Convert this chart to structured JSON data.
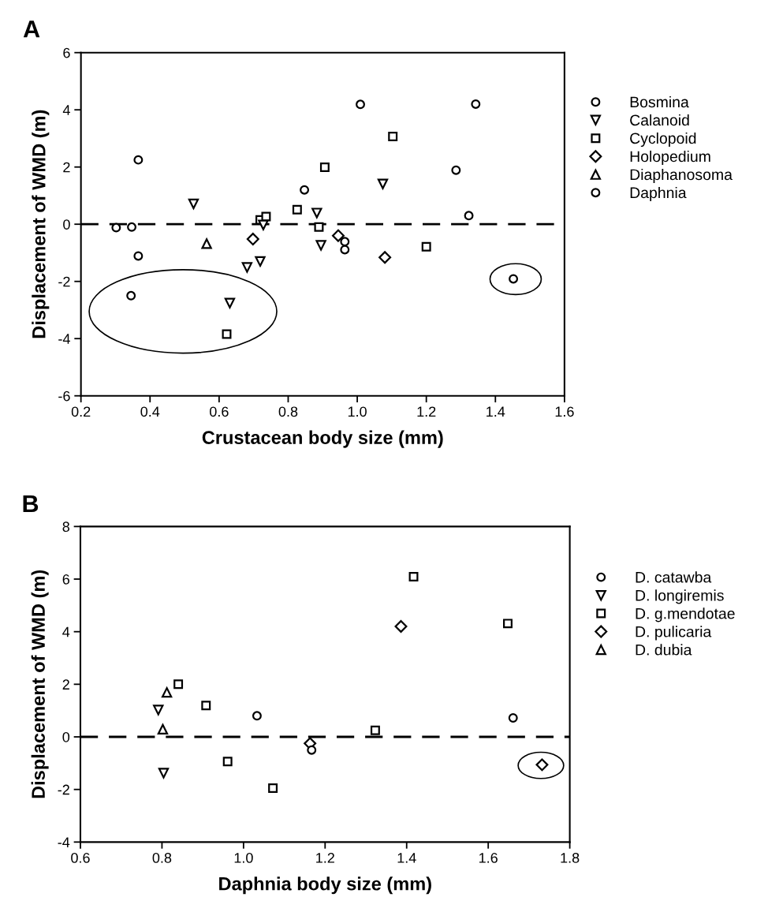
{
  "chart_data": [
    {
      "type": "scatter",
      "title": "A",
      "xlabel": "Crustacean body size (mm)",
      "ylabel": "Displacement of WMD (m)",
      "xlim": [
        0.2,
        1.6
      ],
      "xticks": [
        {
          "value": 0.2,
          "label": "0.2"
        },
        {
          "value": 0.4,
          "label": "0.4"
        },
        {
          "value": 0.6,
          "label": "0.6"
        },
        {
          "value": 0.8,
          "label": "0.8"
        },
        {
          "value": 1.0,
          "label": "1.0"
        },
        {
          "value": 1.2,
          "label": "1.2"
        },
        {
          "value": 1.4,
          "label": "1.4"
        },
        {
          "value": 1.6,
          "label": "1.6"
        }
      ],
      "ylim": [
        -6,
        6
      ],
      "yticks": [
        -6,
        -4,
        -2,
        0,
        2,
        4,
        6
      ],
      "grid": false,
      "legend": "right",
      "ref_lines": [
        {
          "axis": "y",
          "value": 0,
          "line_style": "dashed",
          "color": "#000000"
        }
      ],
      "series": [
        {
          "name": "Bosmina",
          "color": "#000000",
          "marker": "circle",
          "x": [
            0.302,
            0.347,
            0.366,
            0.366,
            0.345
          ],
          "values": [
            -0.12,
            -0.1,
            2.25,
            -1.11,
            -2.5
          ]
        },
        {
          "name": "Calanoid",
          "color": "#000000",
          "marker": "triangle_down",
          "x": [
            0.526,
            0.681,
            0.719,
            0.631,
            0.728,
            0.883,
            0.895,
            1.074
          ],
          "values": [
            0.71,
            -1.51,
            -1.3,
            -2.76,
            -0.03,
            0.39,
            -0.74,
            1.41
          ]
        },
        {
          "name": "Cyclopoid",
          "color": "#000000",
          "marker": "square",
          "x": [
            0.622,
            0.719,
            0.736,
            0.826,
            0.889,
            0.906,
            1.103,
            1.2
          ],
          "values": [
            -3.84,
            0.15,
            0.27,
            0.51,
            -0.1,
            1.99,
            3.07,
            -0.79
          ]
        },
        {
          "name": "Holopedium",
          "color": "#000000",
          "marker": "diamond",
          "x": [
            0.698,
            0.945,
            1.08
          ],
          "values": [
            -0.52,
            -0.4,
            -1.16
          ]
        },
        {
          "name": "Diaphanosoma",
          "color": "#000000",
          "marker": "triangle",
          "x": [
            0.564
          ],
          "values": [
            -0.68
          ]
        },
        {
          "name": "Daphnia",
          "color": "#000000",
          "marker": "circle",
          "x": [
            0.847,
            1.009,
            1.343,
            1.286,
            1.323,
            0.964,
            0.964,
            1.452
          ],
          "values": [
            1.2,
            4.19,
            4.2,
            1.89,
            0.3,
            -0.61,
            -0.89,
            -1.91
          ]
        }
      ]
    },
    {
      "type": "scatter",
      "title": "B",
      "xlabel": "Daphnia body size (mm)",
      "ylabel": "Displacement of WMD (m)",
      "xlim": [
        0.6,
        1.8
      ],
      "xticks": [
        {
          "value": 0.6,
          "label": "0.6"
        },
        {
          "value": 0.8,
          "label": "0.8"
        },
        {
          "value": 1.0,
          "label": "1.0"
        },
        {
          "value": 1.2,
          "label": "1.2"
        },
        {
          "value": 1.4,
          "label": "1.4"
        },
        {
          "value": 1.6,
          "label": "1.6"
        },
        {
          "value": 1.8,
          "label": "1.8"
        }
      ],
      "ylim": [
        -4,
        8
      ],
      "yticks": [
        -4,
        -2,
        0,
        2,
        4,
        6,
        8
      ],
      "grid": false,
      "legend": "right",
      "ref_lines": [
        {
          "axis": "y",
          "value": 0,
          "line_style": "dashed",
          "color": "#000000"
        }
      ],
      "series": [
        {
          "name": "D. catawba",
          "color": "#000000",
          "marker": "circle",
          "x": [
            1.033,
            1.167,
            1.661
          ],
          "values": [
            0.8,
            -0.5,
            0.72
          ]
        },
        {
          "name": "D. longiremis",
          "color": "#000000",
          "marker": "triangle_down",
          "x": [
            0.791,
            0.804
          ],
          "values": [
            1.02,
            -1.38
          ]
        },
        {
          "name": "D. g.mendotae",
          "color": "#000000",
          "marker": "square",
          "x": [
            0.84,
            0.908,
            0.961,
            1.072,
            1.323,
            1.417,
            1.648
          ],
          "values": [
            2.0,
            1.19,
            -0.94,
            -1.95,
            0.25,
            6.09,
            4.31
          ]
        },
        {
          "name": "D. pulicaria",
          "color": "#000000",
          "marker": "diamond",
          "x": [
            1.163,
            1.386,
            1.732
          ],
          "values": [
            -0.25,
            4.2,
            -1.06
          ]
        },
        {
          "name": "D. dubia",
          "color": "#000000",
          "marker": "triangle",
          "x": [
            0.812,
            0.802
          ],
          "values": [
            1.69,
            0.29
          ]
        }
      ]
    }
  ]
}
